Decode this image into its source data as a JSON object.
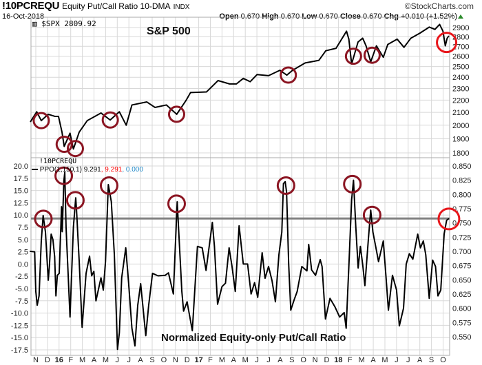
{
  "header": {
    "symbol": "!10PCREQU",
    "description": "Equity Put/Call Ratio 10-DMA",
    "exchange": "INDX",
    "brand": "©StockCharts.com",
    "date": "16-Oct-2018",
    "open_label": "Open",
    "open": "0.670",
    "high_label": "High",
    "high": "0.670",
    "low_label": "Low",
    "low": "0.670",
    "close_label": "Close",
    "close": "0.670",
    "chg_label": "Chg",
    "chg": "+0.010 (+1.52%)"
  },
  "upper_panel": {
    "label": "$SPX 2809.92",
    "annotation": "S&P 500"
  },
  "lower_panel": {
    "symbol": "!10PCREQU",
    "legend_name": "PPO(1,150,1) 9.291",
    "legend_signal": ", 9.291",
    "legend_hist": ", 0.000",
    "annotation": "Normalized Equity-only Put/Call Ratio"
  },
  "colors": {
    "line": "#000000",
    "circle": "#8b1522",
    "circle_latest": "#e8161b",
    "hline": "#808080",
    "grid": "#d8d8d8",
    "signal": "#ff0000",
    "hist": "#1e88c8"
  },
  "chart_data": [
    {
      "type": "line",
      "title": "$SPX",
      "scale": "log",
      "x_unit": "months since Nov 2015",
      "y_ticks": [
        1800,
        1900,
        2000,
        2100,
        2200,
        2300,
        2400,
        2500,
        2600,
        2700,
        2800,
        2900
      ],
      "ylim": [
        1780,
        2960
      ],
      "points": [
        [
          -0.47,
          2025
        ],
        [
          0.08,
          2105
        ],
        [
          0.47,
          2035
        ],
        [
          1.07,
          2085
        ],
        [
          1.66,
          2068
        ],
        [
          1.95,
          2068
        ],
        [
          2.25,
          1948
        ],
        [
          2.44,
          1845
        ],
        [
          2.94,
          1940
        ],
        [
          3.23,
          1827
        ],
        [
          3.73,
          1948
        ],
        [
          4.42,
          2035
        ],
        [
          5.6,
          2095
        ],
        [
          6.39,
          2040
        ],
        [
          7.18,
          2105
        ],
        [
          7.77,
          2000
        ],
        [
          8.26,
          2160
        ],
        [
          9.54,
          2185
        ],
        [
          10.24,
          2140
        ],
        [
          11.22,
          2160
        ],
        [
          12.11,
          2085
        ],
        [
          12.9,
          2196
        ],
        [
          13.3,
          2265
        ],
        [
          14.67,
          2270
        ],
        [
          15.66,
          2370
        ],
        [
          16.65,
          2340
        ],
        [
          17.24,
          2340
        ],
        [
          17.83,
          2390
        ],
        [
          18.42,
          2360
        ],
        [
          19.01,
          2425
        ],
        [
          20,
          2415
        ],
        [
          20.98,
          2465
        ],
        [
          21.57,
          2420
        ],
        [
          22.07,
          2465
        ],
        [
          23.15,
          2535
        ],
        [
          24.33,
          2560
        ],
        [
          24.92,
          2655
        ],
        [
          25.8,
          2680
        ],
        [
          26.7,
          2860
        ],
        [
          26.9,
          2775
        ],
        [
          27.14,
          2525
        ],
        [
          27.69,
          2745
        ],
        [
          28.09,
          2785
        ],
        [
          28.38,
          2705
        ],
        [
          28.78,
          2545
        ],
        [
          29.27,
          2705
        ],
        [
          29.86,
          2590
        ],
        [
          30.25,
          2720
        ],
        [
          31.05,
          2775
        ],
        [
          31.64,
          2690
        ],
        [
          32.23,
          2785
        ],
        [
          33.02,
          2840
        ],
        [
          33.81,
          2905
        ],
        [
          34.3,
          2880
        ],
        [
          34.7,
          2935
        ],
        [
          34.99,
          2860
        ],
        [
          35.19,
          2705
        ],
        [
          35.35,
          2785
        ],
        [
          35.5,
          2809.92
        ]
      ],
      "circles": [
        [
          0.47,
          2035
        ],
        [
          2.44,
          1860
        ],
        [
          3.4,
          1830
        ],
        [
          6.4,
          2040
        ],
        [
          12.1,
          2085
        ],
        [
          21.7,
          2420
        ],
        [
          27.3,
          2600
        ],
        [
          28.9,
          2610
        ],
        [
          35.3,
          2740
        ]
      ]
    },
    {
      "type": "line",
      "title": "PPO(1,150,1)",
      "y_ticks": [
        20.0,
        17.5,
        15.0,
        12.5,
        10.0,
        7.5,
        5.0,
        2.5,
        0.0,
        -2.5,
        -5.0,
        -7.5,
        -10.0,
        -12.5,
        -15.0,
        -17.5
      ],
      "right_ticks": [
        "0.850",
        "0.825",
        "0.800",
        "0.775",
        "0.750",
        "0.725",
        "0.700",
        "0.675",
        "0.650",
        "0.625",
        "0.600",
        "0.575",
        "0.550"
      ],
      "ylim": [
        -19,
        21.6
      ],
      "hline": 9.291,
      "points": [
        [
          -0.52,
          2.6
        ],
        [
          -0.1,
          2.5
        ],
        [
          0,
          -5.6
        ],
        [
          0.12,
          -8.4
        ],
        [
          0.28,
          -6.5
        ],
        [
          0.47,
          4.7
        ],
        [
          0.63,
          9.9
        ],
        [
          0.83,
          6.5
        ],
        [
          1.07,
          -3.3
        ],
        [
          1.18,
          0
        ],
        [
          1.32,
          6.1
        ],
        [
          1.47,
          5
        ],
        [
          1.62,
          1.5
        ],
        [
          1.73,
          -6.5
        ],
        [
          1.85,
          -2.3
        ],
        [
          2.01,
          -1.9
        ],
        [
          2.21,
          11.7
        ],
        [
          2.27,
          6.6
        ],
        [
          2.41,
          16.9
        ],
        [
          2.49,
          18.7
        ],
        [
          2.6,
          7.5
        ],
        [
          2.94,
          -10.8
        ],
        [
          3.23,
          7.5
        ],
        [
          3.43,
          13.5
        ],
        [
          3.5,
          11
        ],
        [
          3.73,
          0.5
        ],
        [
          3.98,
          -12.9
        ],
        [
          4.32,
          -1.9
        ],
        [
          4.62,
          1.6
        ],
        [
          4.8,
          -2.4
        ],
        [
          4.99,
          -1.5
        ],
        [
          5.17,
          -7.5
        ],
        [
          5.6,
          -2.8
        ],
        [
          5.8,
          -5.3
        ],
        [
          5.99,
          0.5
        ],
        [
          6.23,
          16.2
        ],
        [
          6.49,
          12.7
        ],
        [
          6.75,
          1.9
        ],
        [
          7.02,
          -17.4
        ],
        [
          7.18,
          -14
        ],
        [
          7.38,
          -2.8
        ],
        [
          7.73,
          3.3
        ],
        [
          7.97,
          -3.7
        ],
        [
          8.26,
          -13.1
        ],
        [
          8.52,
          -16.7
        ],
        [
          8.76,
          -8.4
        ],
        [
          9.01,
          -4
        ],
        [
          9.45,
          -14.6
        ],
        [
          9.7,
          -8.4
        ],
        [
          10.03,
          -1.9
        ],
        [
          10.5,
          -2.4
        ],
        [
          11.12,
          -2.3
        ],
        [
          11.4,
          -1.8
        ],
        [
          11.82,
          -6.1
        ],
        [
          12.15,
          12.7
        ],
        [
          12.55,
          -5.6
        ],
        [
          12.7,
          -9.6
        ],
        [
          13.0,
          -7.7
        ],
        [
          13.45,
          -13.6
        ],
        [
          13.89,
          3.6
        ],
        [
          14.3,
          3.3
        ],
        [
          14.63,
          -1.3
        ],
        [
          15.17,
          8.5
        ],
        [
          15.35,
          3.6
        ],
        [
          15.62,
          -8.2
        ],
        [
          16.0,
          -4.6
        ],
        [
          16.3,
          -3.9
        ],
        [
          16.61,
          3.3
        ],
        [
          16.85,
          -0.3
        ],
        [
          17.14,
          -5.6
        ],
        [
          17.47,
          7.8
        ],
        [
          17.83,
          0
        ],
        [
          18.2,
          0
        ],
        [
          18.5,
          -6.1
        ],
        [
          18.8,
          -3.8
        ],
        [
          19.07,
          -6.8
        ],
        [
          19.45,
          2.3
        ],
        [
          19.7,
          -2.9
        ],
        [
          20,
          -0.5
        ],
        [
          20.3,
          -3.4
        ],
        [
          20.59,
          -7.7
        ],
        [
          20.89,
          1.9
        ],
        [
          21.14,
          6.5
        ],
        [
          21.28,
          16.4
        ],
        [
          21.43,
          16.8
        ],
        [
          21.55,
          14.7
        ],
        [
          21.73,
          0
        ],
        [
          21.91,
          -9.4
        ],
        [
          22.2,
          -7.3
        ],
        [
          22.46,
          -5.6
        ],
        [
          22.86,
          -0.5
        ],
        [
          23.3,
          -1.4
        ],
        [
          23.45,
          4
        ],
        [
          23.7,
          -1.2
        ],
        [
          24.04,
          -2.3
        ],
        [
          24.44,
          0.9
        ],
        [
          24.6,
          -0.5
        ],
        [
          24.89,
          -11.2
        ],
        [
          25.28,
          -7
        ],
        [
          25.7,
          -8.7
        ],
        [
          26.11,
          -10.8
        ],
        [
          26.5,
          -9.9
        ],
        [
          26.67,
          -13.1
        ],
        [
          26.95,
          2.3
        ],
        [
          27.14,
          13.1
        ],
        [
          27.3,
          17.1
        ],
        [
          27.5,
          7.5
        ],
        [
          27.7,
          -0.8
        ],
        [
          27.89,
          3.6
        ],
        [
          28.1,
          -0.3
        ],
        [
          28.28,
          -4.4
        ],
        [
          28.58,
          5.1
        ],
        [
          28.78,
          11
        ],
        [
          28.97,
          6.5
        ],
        [
          29.23,
          3.3
        ],
        [
          29.45,
          0.5
        ],
        [
          29.86,
          4.7
        ],
        [
          30.1,
          -2.8
        ],
        [
          30.3,
          -9.4
        ],
        [
          30.65,
          -2.3
        ],
        [
          31.0,
          -5.3
        ],
        [
          31.24,
          -12.6
        ],
        [
          31.6,
          -9
        ],
        [
          31.83,
          0
        ],
        [
          32.1,
          2.1
        ],
        [
          32.4,
          1
        ],
        [
          32.82,
          6.1
        ],
        [
          33.05,
          3.3
        ],
        [
          33.3,
          4.7
        ],
        [
          33.51,
          1.9
        ],
        [
          33.81,
          -7
        ],
        [
          34.1,
          0.8
        ],
        [
          34.35,
          -0.5
        ],
        [
          34.56,
          -6.5
        ],
        [
          34.8,
          -5.3
        ],
        [
          35.09,
          6.1
        ],
        [
          35.3,
          8.9
        ],
        [
          35.5,
          9.291
        ]
      ],
      "circles": [
        [
          0.65,
          9.2
        ],
        [
          2.4,
          18
        ],
        [
          3.4,
          13
        ],
        [
          6.3,
          16
        ],
        [
          12.1,
          12.3
        ],
        [
          21.5,
          16
        ],
        [
          27.2,
          16.3
        ],
        [
          28.9,
          10
        ],
        [
          35.5,
          9.2
        ]
      ]
    }
  ],
  "x_axis": {
    "months": [
      "N",
      "D",
      "16",
      "F",
      "M",
      "A",
      "M",
      "J",
      "J",
      "A",
      "S",
      "O",
      "N",
      "D",
      "17",
      "F",
      "M",
      "A",
      "M",
      "J",
      "J",
      "A",
      "S",
      "O",
      "N",
      "D",
      "18",
      "F",
      "M",
      "A",
      "M",
      "J",
      "J",
      "A",
      "S",
      "O"
    ]
  }
}
